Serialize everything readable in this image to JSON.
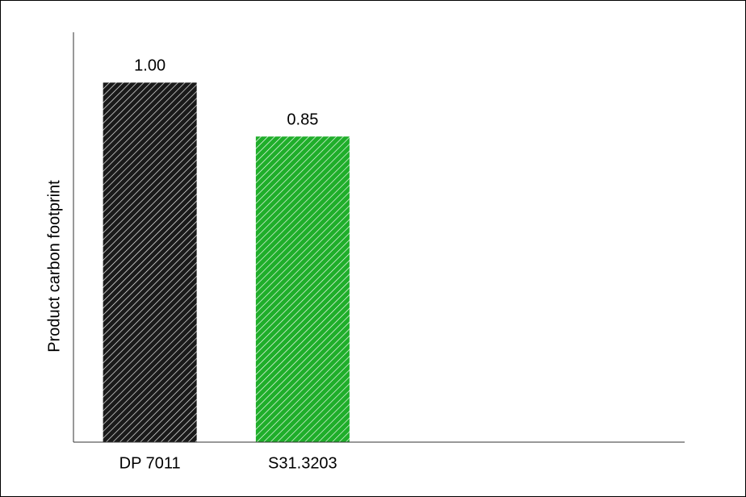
{
  "chart_data": {
    "type": "bar",
    "ylabel": "Product carbon footprint",
    "categories": [
      "DP 7011",
      "S31.3203"
    ],
    "values": [
      1.0,
      0.85
    ],
    "value_labels": [
      "1.00",
      "0.85"
    ],
    "colors": [
      "#1a1a1a",
      "#1fae2a"
    ],
    "hatch": "diagonal",
    "ylim": [
      0,
      1.14
    ],
    "yticks": [],
    "grid": false
  }
}
